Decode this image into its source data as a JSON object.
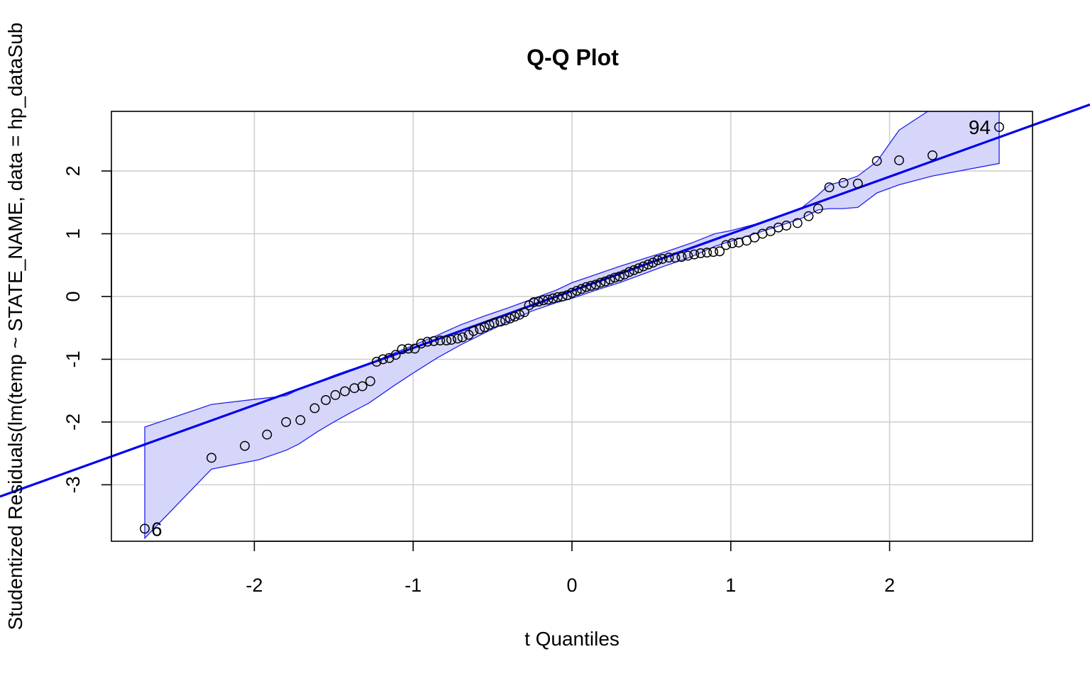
{
  "chart_data": {
    "type": "scatter",
    "title": "Q-Q Plot",
    "xlabel": "t Quantiles",
    "ylabel": "Studentized Residuals(lm(temp ~ STATE_NAME, data = hp_dataSub",
    "xlim": [
      -2.9,
      2.9
    ],
    "ylim": [
      -3.9,
      2.95
    ],
    "x_ticks": [
      -2,
      -1,
      0,
      1,
      2
    ],
    "y_ticks": [
      -3,
      -2,
      -1,
      0,
      1,
      2
    ],
    "x_tick_labels": [
      "-2",
      "-1",
      "0",
      "1",
      "2"
    ],
    "y_tick_labels": [
      "-3",
      "-2",
      "-1",
      "0",
      "1",
      "2"
    ],
    "grid": true,
    "colors": {
      "line": "#0000ee",
      "band_fill": "#d6d6fb",
      "band_stroke": "#2222ee",
      "points": "#000000",
      "grid": "#d0d0d0"
    },
    "reference_line": {
      "slope": 0.91,
      "intercept": 0.09
    },
    "envelope": {
      "x": [
        -2.69,
        -2.27,
        -1.97,
        -1.8,
        -1.72,
        -1.6,
        -1.5,
        -1.4,
        -1.28,
        -1.12,
        -1.0,
        -0.85,
        -0.7,
        -0.55,
        -0.4,
        -0.25,
        -0.1,
        0.0,
        0.15,
        0.3,
        0.45,
        0.6,
        0.75,
        0.9,
        1.0,
        1.15,
        1.3,
        1.45,
        1.55,
        1.62,
        1.7,
        1.8,
        1.92,
        2.06,
        2.27,
        2.69
      ],
      "upper": [
        -2.08,
        -1.72,
        -1.63,
        -1.58,
        -1.48,
        -1.36,
        -1.26,
        -1.17,
        -1.08,
        -0.9,
        -0.78,
        -0.62,
        -0.45,
        -0.31,
        -0.18,
        -0.04,
        0.1,
        0.22,
        0.35,
        0.48,
        0.6,
        0.72,
        0.85,
        1.0,
        1.05,
        1.15,
        1.28,
        1.42,
        1.62,
        1.78,
        1.83,
        1.92,
        2.15,
        2.65,
        3.0,
        3.0
      ],
      "lower": [
        -3.85,
        -2.75,
        -2.6,
        -2.45,
        -2.35,
        -2.15,
        -2.0,
        -1.86,
        -1.7,
        -1.42,
        -1.22,
        -0.98,
        -0.77,
        -0.58,
        -0.4,
        -0.23,
        -0.1,
        -0.03,
        0.1,
        0.22,
        0.36,
        0.5,
        0.63,
        0.8,
        0.88,
        1.0,
        1.12,
        1.25,
        1.38,
        1.4,
        1.4,
        1.42,
        1.65,
        1.78,
        1.92,
        2.12
      ]
    },
    "points": [
      {
        "x": -2.69,
        "y": -3.7
      },
      {
        "x": -2.27,
        "y": -2.57
      },
      {
        "x": -2.06,
        "y": -2.38
      },
      {
        "x": -1.92,
        "y": -2.2
      },
      {
        "x": -1.8,
        "y": -2.0
      },
      {
        "x": -1.71,
        "y": -1.97
      },
      {
        "x": -1.62,
        "y": -1.78
      },
      {
        "x": -1.55,
        "y": -1.65
      },
      {
        "x": -1.49,
        "y": -1.57
      },
      {
        "x": -1.43,
        "y": -1.51
      },
      {
        "x": -1.37,
        "y": -1.46
      },
      {
        "x": -1.32,
        "y": -1.43
      },
      {
        "x": -1.27,
        "y": -1.35
      },
      {
        "x": -1.23,
        "y": -1.04
      },
      {
        "x": -1.19,
        "y": -1.0
      },
      {
        "x": -1.15,
        "y": -0.98
      },
      {
        "x": -1.11,
        "y": -0.93
      },
      {
        "x": -1.07,
        "y": -0.84
      },
      {
        "x": -1.03,
        "y": -0.83
      },
      {
        "x": -0.99,
        "y": -0.83
      },
      {
        "x": -0.95,
        "y": -0.75
      },
      {
        "x": -0.91,
        "y": -0.72
      },
      {
        "x": -0.87,
        "y": -0.71
      },
      {
        "x": -0.83,
        "y": -0.7
      },
      {
        "x": -0.79,
        "y": -0.7
      },
      {
        "x": -0.76,
        "y": -0.69
      },
      {
        "x": -0.72,
        "y": -0.67
      },
      {
        "x": -0.69,
        "y": -0.65
      },
      {
        "x": -0.65,
        "y": -0.61
      },
      {
        "x": -0.62,
        "y": -0.55
      },
      {
        "x": -0.58,
        "y": -0.52
      },
      {
        "x": -0.55,
        "y": -0.49
      },
      {
        "x": -0.52,
        "y": -0.45
      },
      {
        "x": -0.49,
        "y": -0.42
      },
      {
        "x": -0.45,
        "y": -0.4
      },
      {
        "x": -0.42,
        "y": -0.38
      },
      {
        "x": -0.39,
        "y": -0.35
      },
      {
        "x": -0.36,
        "y": -0.32
      },
      {
        "x": -0.33,
        "y": -0.29
      },
      {
        "x": -0.3,
        "y": -0.25
      },
      {
        "x": -0.27,
        "y": -0.14
      },
      {
        "x": -0.24,
        "y": -0.09
      },
      {
        "x": -0.21,
        "y": -0.08
      },
      {
        "x": -0.18,
        "y": -0.06
      },
      {
        "x": -0.15,
        "y": -0.05
      },
      {
        "x": -0.12,
        "y": -0.03
      },
      {
        "x": -0.09,
        "y": -0.01
      },
      {
        "x": -0.06,
        "y": 0.0
      },
      {
        "x": -0.03,
        "y": 0.02
      },
      {
        "x": 0.0,
        "y": 0.06
      },
      {
        "x": 0.03,
        "y": 0.09
      },
      {
        "x": 0.06,
        "y": 0.12
      },
      {
        "x": 0.09,
        "y": 0.15
      },
      {
        "x": 0.12,
        "y": 0.17
      },
      {
        "x": 0.15,
        "y": 0.19
      },
      {
        "x": 0.18,
        "y": 0.22
      },
      {
        "x": 0.21,
        "y": 0.24
      },
      {
        "x": 0.24,
        "y": 0.27
      },
      {
        "x": 0.27,
        "y": 0.3
      },
      {
        "x": 0.3,
        "y": 0.32
      },
      {
        "x": 0.33,
        "y": 0.35
      },
      {
        "x": 0.36,
        "y": 0.39
      },
      {
        "x": 0.39,
        "y": 0.42
      },
      {
        "x": 0.42,
        "y": 0.45
      },
      {
        "x": 0.45,
        "y": 0.48
      },
      {
        "x": 0.48,
        "y": 0.51
      },
      {
        "x": 0.51,
        "y": 0.54
      },
      {
        "x": 0.54,
        "y": 0.58
      },
      {
        "x": 0.57,
        "y": 0.6
      },
      {
        "x": 0.61,
        "y": 0.62
      },
      {
        "x": 0.65,
        "y": 0.62
      },
      {
        "x": 0.69,
        "y": 0.63
      },
      {
        "x": 0.73,
        "y": 0.65
      },
      {
        "x": 0.77,
        "y": 0.67
      },
      {
        "x": 0.81,
        "y": 0.69
      },
      {
        "x": 0.85,
        "y": 0.7
      },
      {
        "x": 0.89,
        "y": 0.71
      },
      {
        "x": 0.93,
        "y": 0.72
      },
      {
        "x": 0.97,
        "y": 0.82
      },
      {
        "x": 1.01,
        "y": 0.85
      },
      {
        "x": 1.05,
        "y": 0.86
      },
      {
        "x": 1.1,
        "y": 0.89
      },
      {
        "x": 1.15,
        "y": 0.94
      },
      {
        "x": 1.2,
        "y": 1.0
      },
      {
        "x": 1.25,
        "y": 1.04
      },
      {
        "x": 1.3,
        "y": 1.1
      },
      {
        "x": 1.35,
        "y": 1.13
      },
      {
        "x": 1.42,
        "y": 1.17
      },
      {
        "x": 1.49,
        "y": 1.28
      },
      {
        "x": 1.55,
        "y": 1.4
      },
      {
        "x": 1.62,
        "y": 1.74
      },
      {
        "x": 1.71,
        "y": 1.81
      },
      {
        "x": 1.8,
        "y": 1.8
      },
      {
        "x": 1.92,
        "y": 2.16
      },
      {
        "x": 2.06,
        "y": 2.17
      },
      {
        "x": 2.27,
        "y": 2.25
      },
      {
        "x": 2.69,
        "y": 2.7
      }
    ],
    "point_labels": [
      {
        "text": "94",
        "x": 2.69,
        "y": 2.7,
        "side": "left"
      },
      {
        "text": "6",
        "x": -2.69,
        "y": -3.7,
        "side": "right"
      }
    ]
  }
}
